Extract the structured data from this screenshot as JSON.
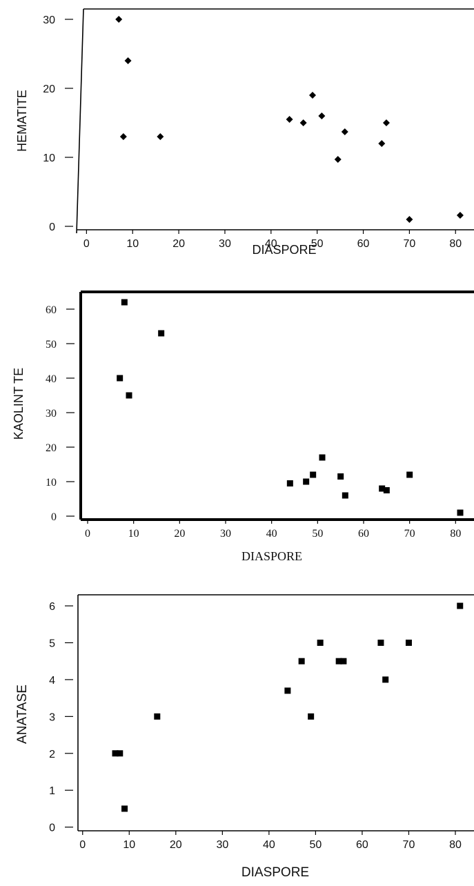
{
  "chart_data": [
    {
      "type": "scatter",
      "xlabel": "DIASPORE",
      "ylabel": "HEMATITE",
      "xlim": [
        -2,
        84
      ],
      "ylim": [
        -0.5,
        31.5
      ],
      "xticks": [
        0,
        10,
        20,
        30,
        40,
        50,
        60,
        70,
        80
      ],
      "yticks": [
        0,
        10,
        20,
        30
      ],
      "marker": "diamond",
      "grid": false,
      "points": [
        {
          "x": 7,
          "y": 30
        },
        {
          "x": 9,
          "y": 24
        },
        {
          "x": 8,
          "y": 13
        },
        {
          "x": 16,
          "y": 13
        },
        {
          "x": 44,
          "y": 15.5
        },
        {
          "x": 47,
          "y": 15
        },
        {
          "x": 49,
          "y": 19
        },
        {
          "x": 51,
          "y": 16
        },
        {
          "x": 56,
          "y": 13.7
        },
        {
          "x": 54.5,
          "y": 9.7
        },
        {
          "x": 64,
          "y": 12
        },
        {
          "x": 65,
          "y": 15
        },
        {
          "x": 70,
          "y": 1
        },
        {
          "x": 81,
          "y": 1.6
        }
      ]
    },
    {
      "type": "scatter",
      "xlabel": "DIASPORE",
      "ylabel": "KAOLINT TE",
      "xlim": [
        -1.5,
        84
      ],
      "ylim": [
        -1,
        65
      ],
      "xticks": [
        0,
        10,
        20,
        30,
        40,
        50,
        60,
        70,
        80
      ],
      "yticks": [
        0,
        10,
        20,
        30,
        40,
        50,
        60
      ],
      "marker": "square",
      "grid": false,
      "points": [
        {
          "x": 8,
          "y": 62
        },
        {
          "x": 16,
          "y": 53
        },
        {
          "x": 7,
          "y": 40
        },
        {
          "x": 9,
          "y": 35
        },
        {
          "x": 44,
          "y": 9.5
        },
        {
          "x": 47.5,
          "y": 10
        },
        {
          "x": 49,
          "y": 12
        },
        {
          "x": 51,
          "y": 17
        },
        {
          "x": 55,
          "y": 11.5
        },
        {
          "x": 56,
          "y": 6
        },
        {
          "x": 64,
          "y": 8
        },
        {
          "x": 65,
          "y": 7.5
        },
        {
          "x": 70,
          "y": 12
        },
        {
          "x": 81,
          "y": 1
        }
      ]
    },
    {
      "type": "scatter",
      "xlabel": "DIASPORE",
      "ylabel": "ANATASE",
      "xlim": [
        -1,
        84
      ],
      "ylim": [
        -0.1,
        6.3
      ],
      "xticks": [
        0,
        10,
        20,
        30,
        40,
        50,
        60,
        70,
        80
      ],
      "yticks": [
        0,
        1,
        2,
        3,
        4,
        5,
        6
      ],
      "marker": "square",
      "grid": false,
      "points": [
        {
          "x": 7,
          "y": 2
        },
        {
          "x": 8,
          "y": 2
        },
        {
          "x": 9,
          "y": 0.5
        },
        {
          "x": 16,
          "y": 3
        },
        {
          "x": 44,
          "y": 3.7
        },
        {
          "x": 47,
          "y": 4.5
        },
        {
          "x": 49,
          "y": 3
        },
        {
          "x": 51,
          "y": 5
        },
        {
          "x": 55,
          "y": 4.5
        },
        {
          "x": 56,
          "y": 4.5
        },
        {
          "x": 64,
          "y": 5
        },
        {
          "x": 65,
          "y": 4
        },
        {
          "x": 70,
          "y": 5
        },
        {
          "x": 81,
          "y": 6
        }
      ]
    }
  ]
}
